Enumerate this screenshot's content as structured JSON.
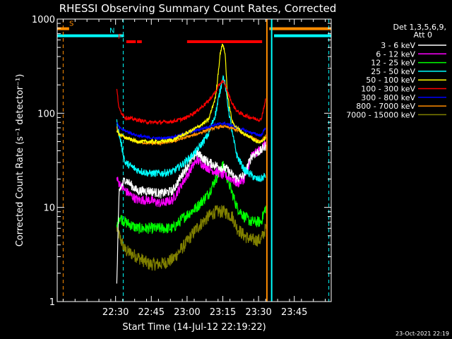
{
  "chart_data": {
    "type": "line",
    "title": "RHESSI Observing Summary Count Rates, Corrected",
    "xlabel": "Start Time (14-Jul-12 22:19:22)",
    "ylabel": "Corrected Count Rate (s⁻¹ detector⁻¹)",
    "ylog": true,
    "ylim": [
      1,
      1000
    ],
    "xlim_minutes": [
      -13.5,
      101.5
    ],
    "x_ticks": [
      {
        "t": 11,
        "label": "22:30"
      },
      {
        "t": 26,
        "label": "22:45"
      },
      {
        "t": 41,
        "label": "23:00"
      },
      {
        "t": 56,
        "label": "23:15"
      },
      {
        "t": 71,
        "label": "23:30"
      },
      {
        "t": 86,
        "label": "23:45"
      }
    ],
    "y_ticks": [
      {
        "v": 1,
        "label": "1"
      },
      {
        "v": 10,
        "label": "10"
      },
      {
        "v": 100,
        "label": "100"
      },
      {
        "v": 1000,
        "label": "1000"
      }
    ],
    "legend_title": [
      "Det 1,3,5,6,9,",
      "Att 0"
    ],
    "legend_placement": "top-right, outside plot",
    "timestamp": "23-Oct-2021 22:19",
    "flags": [
      {
        "label": "S",
        "color": "#ff8c00",
        "start": -13.5,
        "end": -8.5,
        "level": 790
      },
      {
        "label": "S",
        "color": "#ff8c00",
        "start": 75.5,
        "end": 101.5,
        "level": 790
      },
      {
        "label": "N",
        "color": "#00ffff",
        "start": -13.5,
        "end": 14.5,
        "level": 665
      },
      {
        "label": "N",
        "color": "#00ffff",
        "start": 77.5,
        "end": 101.5,
        "level": 665
      },
      {
        "label": "F",
        "color": "#ff0000",
        "start": 15.5,
        "end": 19.5,
        "level": 575
      },
      {
        "label": "F",
        "color": "#ff0000",
        "start": 20.0,
        "end": 22.0,
        "level": 575
      },
      {
        "label": "F",
        "color": "#ff0000",
        "start": 41.0,
        "end": 72.5,
        "level": 575
      }
    ],
    "vertical_markers": [
      {
        "t": -11.0,
        "color": "#ff8c00",
        "style": "dashed"
      },
      {
        "t": 14.2,
        "color": "#00ffff",
        "style": "dashed"
      },
      {
        "t": 100.5,
        "color": "#00ffff",
        "style": "dashed"
      },
      {
        "t": 74.5,
        "color": "#ff8c00",
        "style": "solid"
      },
      {
        "t": 76.5,
        "color": "#00ffff",
        "style": "solid"
      }
    ],
    "x": [
      11.5,
      12.5,
      15.0,
      20.0,
      25.0,
      30.0,
      35.0,
      40.0,
      45.0,
      50.0,
      53.0,
      55.0,
      56.0,
      57.0,
      58.0,
      60.0,
      62.0,
      65.0,
      68.0,
      70.0,
      72.0,
      74.0
    ],
    "series": [
      {
        "name": "3 - 6 keV",
        "color": "#ffffff",
        "noise": 0.05,
        "values": [
          1.5,
          15,
          20,
          15,
          15,
          14,
          15,
          25,
          38,
          30,
          28,
          27,
          26,
          26,
          25,
          22,
          20,
          22,
          35,
          38,
          40,
          45
        ]
      },
      {
        "name": "6 - 12 keV",
        "color": "#ff00ff",
        "noise": 0.05,
        "values": [
          20,
          18,
          15,
          12,
          12,
          11,
          12,
          20,
          32,
          26,
          24,
          23,
          22,
          22,
          21,
          20,
          18,
          20,
          35,
          38,
          42,
          48
        ]
      },
      {
        "name": "12 - 25 keV",
        "color": "#00ff00",
        "noise": 0.06,
        "values": [
          6,
          8,
          7,
          6,
          6,
          6,
          6,
          8,
          10,
          14,
          20,
          25,
          28,
          24,
          20,
          14,
          10,
          8,
          7,
          7,
          7,
          10
        ]
      },
      {
        "name": "25 - 50 keV",
        "color": "#00ffff",
        "noise": 0.04,
        "values": [
          80,
          60,
          30,
          25,
          23,
          23,
          24,
          30,
          40,
          60,
          100,
          180,
          250,
          200,
          130,
          60,
          35,
          25,
          22,
          20,
          20,
          22
        ]
      },
      {
        "name": "50 - 100 keV",
        "color": "#ffff00",
        "noise": 0.02,
        "values": [
          65,
          60,
          55,
          50,
          50,
          50,
          52,
          60,
          70,
          85,
          150,
          450,
          550,
          420,
          150,
          80,
          70,
          60,
          55,
          50,
          50,
          55
        ]
      },
      {
        "name": "100 - 300 keV",
        "color": "#ff0000",
        "noise": 0.02,
        "values": [
          180,
          110,
          90,
          85,
          80,
          80,
          82,
          88,
          105,
          135,
          170,
          210,
          220,
          200,
          170,
          125,
          105,
          95,
          90,
          87,
          85,
          140
        ]
      },
      {
        "name": "300 - 800 keV",
        "color": "#0000ff",
        "noise": 0.015,
        "values": [
          80,
          70,
          65,
          58,
          55,
          54,
          56,
          60,
          66,
          72,
          76,
          77,
          78,
          78,
          76,
          74,
          70,
          66,
          62,
          60,
          58,
          70
        ]
      },
      {
        "name": "800 - 7000 keV",
        "color": "#ff8c00",
        "noise": 0.015,
        "values": [
          70,
          60,
          55,
          50,
          48,
          48,
          50,
          55,
          60,
          67,
          70,
          72,
          72,
          72,
          71,
          69,
          66,
          60,
          56,
          53,
          50,
          58
        ]
      },
      {
        "name": "7000 - 15000 keV",
        "color": "#808000",
        "noise": 0.07,
        "values": [
          6,
          5,
          3.5,
          3,
          2.5,
          2.5,
          2.8,
          4,
          6,
          8,
          9,
          9,
          9,
          9,
          8.5,
          8,
          6,
          5,
          4.5,
          4.5,
          4.5,
          6
        ]
      }
    ]
  }
}
